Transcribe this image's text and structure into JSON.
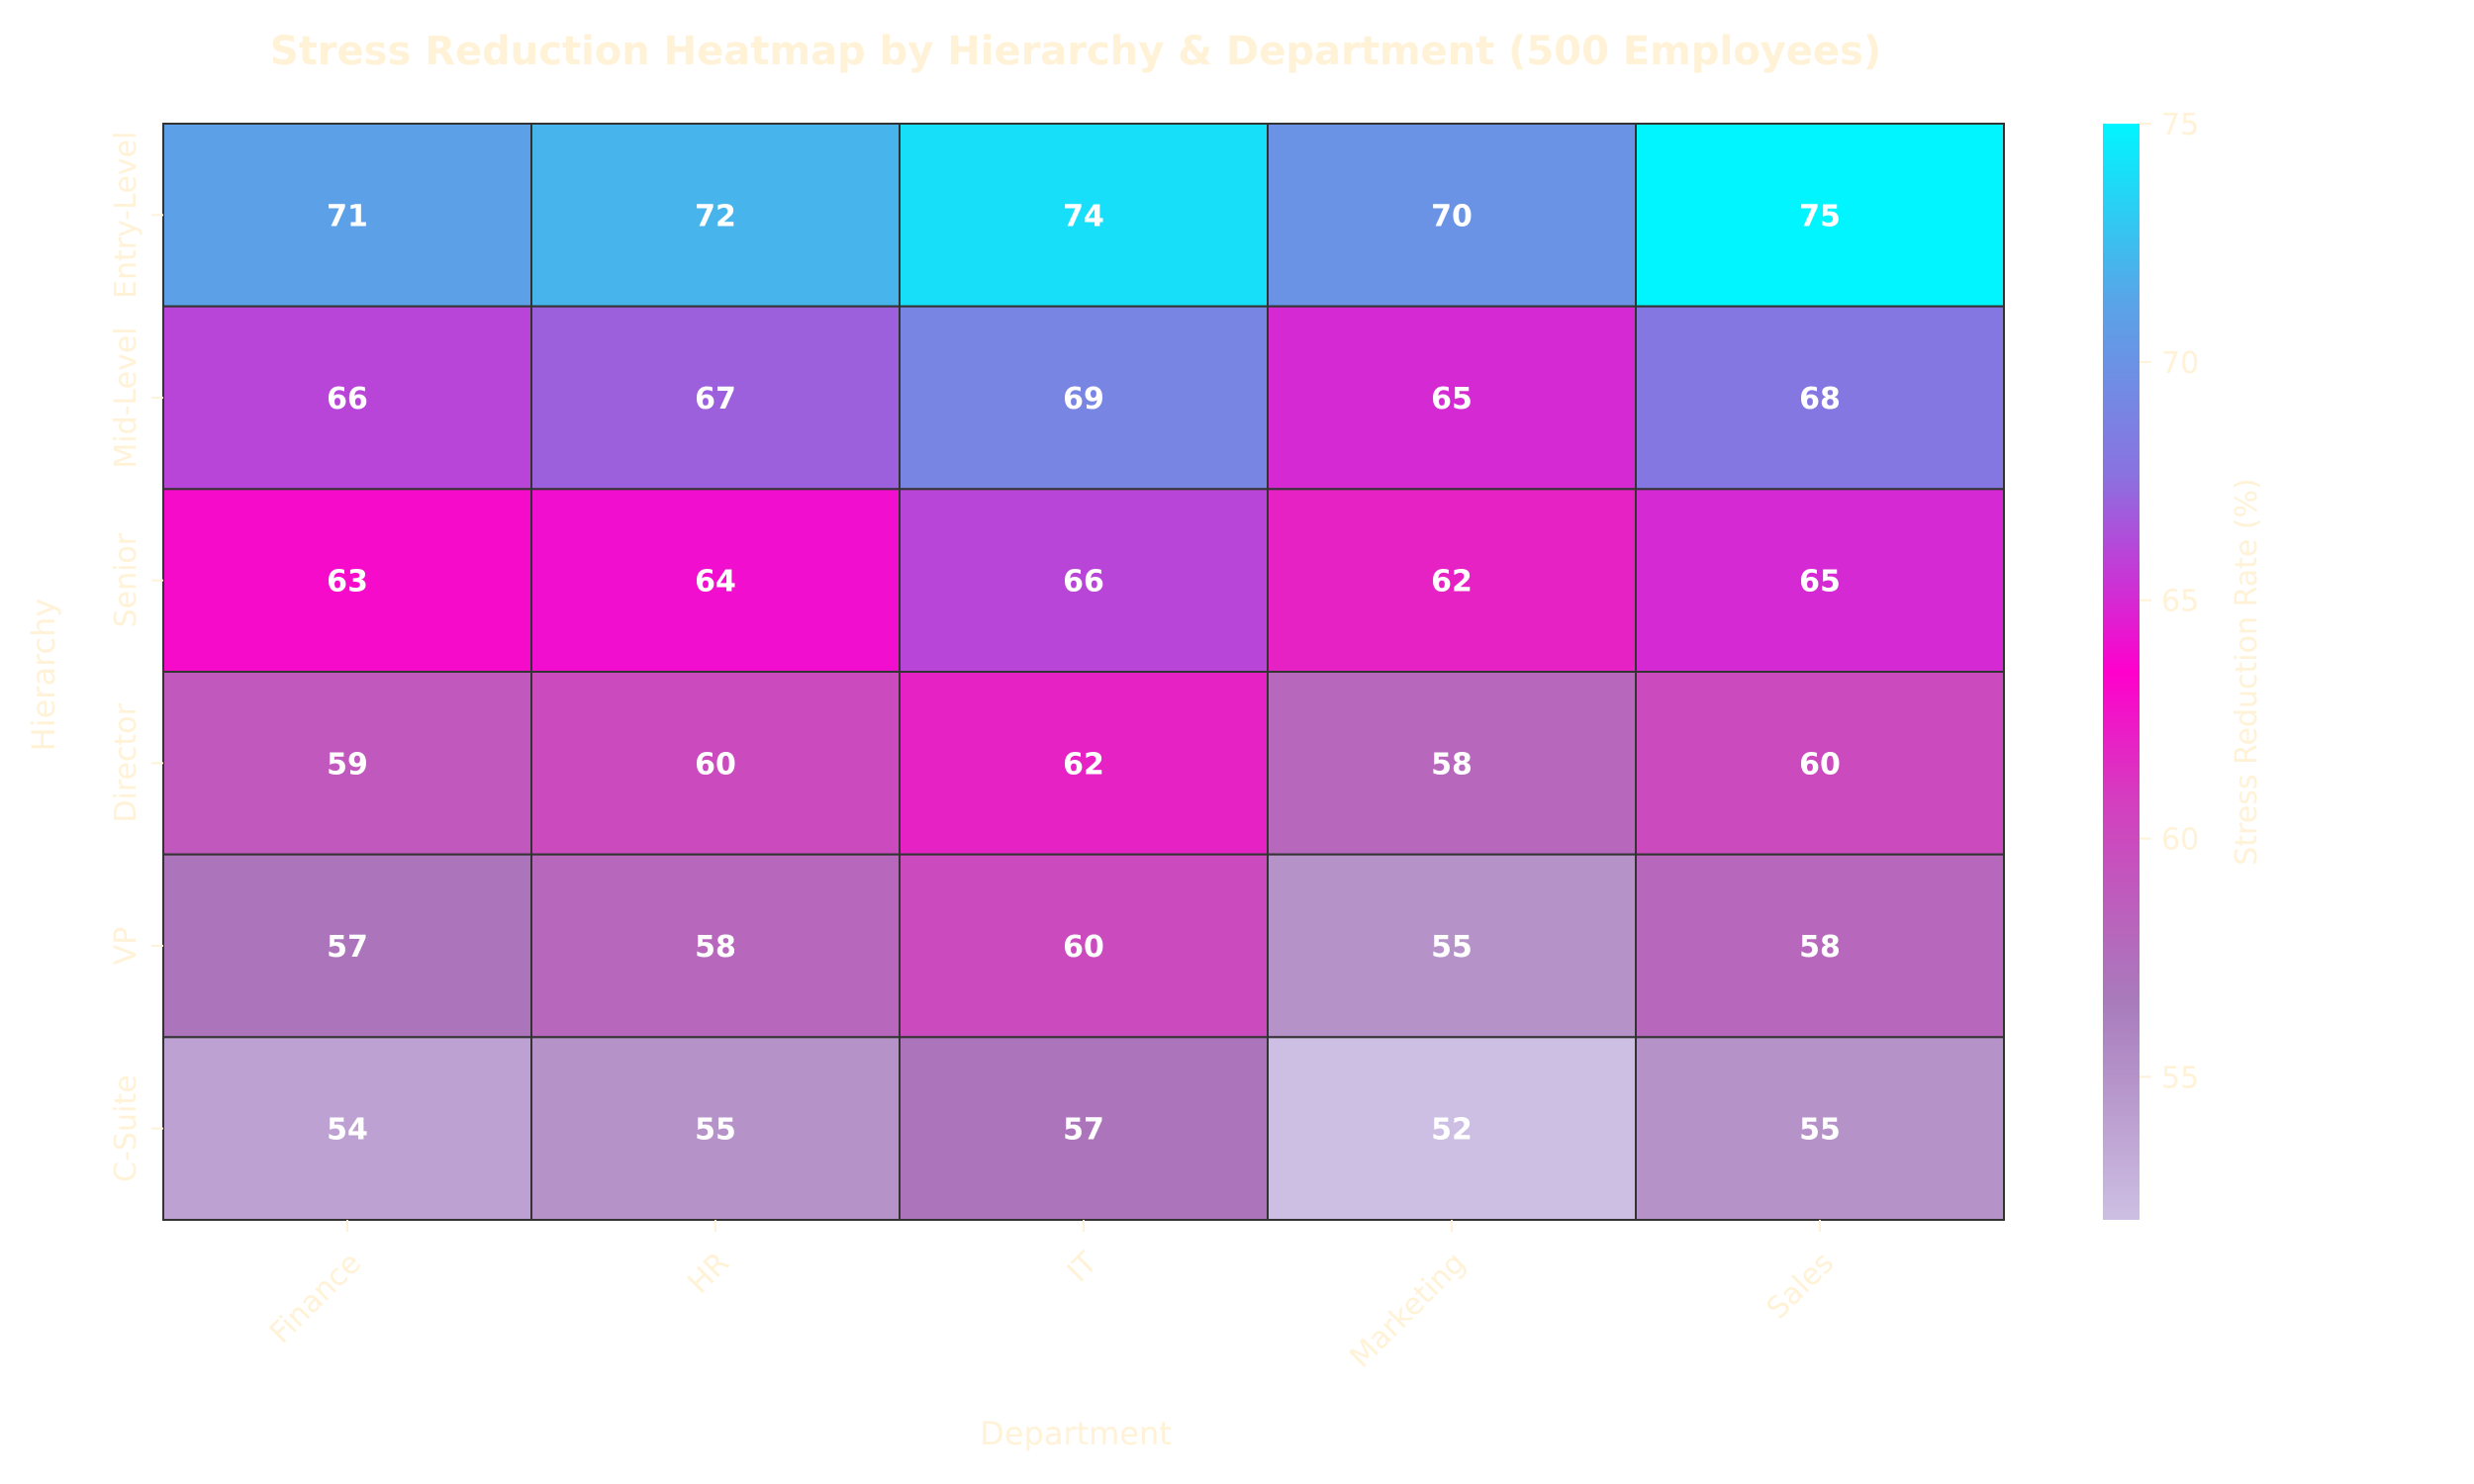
{
  "chart_data": {
    "type": "heatmap",
    "title": "Stress Reduction Heatmap by Hierarchy & Department (500 Employees)",
    "xlabel": "Department",
    "ylabel": "Hierarchy",
    "x_categories": [
      "Finance",
      "HR",
      "IT",
      "Marketing",
      "Sales"
    ],
    "y_categories": [
      "Entry-Level",
      "Mid-Level",
      "Senior",
      "Director",
      "VP",
      "C-Suite"
    ],
    "values": [
      [
        71,
        72,
        74,
        70,
        75
      ],
      [
        66,
        67,
        69,
        65,
        68
      ],
      [
        63,
        64,
        66,
        62,
        65
      ],
      [
        59,
        60,
        62,
        58,
        60
      ],
      [
        57,
        58,
        60,
        55,
        58
      ],
      [
        54,
        55,
        57,
        52,
        55
      ]
    ],
    "colorbar": {
      "label": "Stress Reduction Rate (%)",
      "range": [
        52,
        75
      ],
      "ticks": [
        55,
        60,
        65,
        70,
        75
      ]
    },
    "colors": {
      "low": "#cdbfe3",
      "mid_low": "#a17cba",
      "mid": "#ff00cc",
      "mid_high": "#8a72e0",
      "high": "#00f5ff",
      "text_light": "#fff2d6",
      "cell_text": "#ffffff",
      "cell_border": "#333333"
    }
  }
}
